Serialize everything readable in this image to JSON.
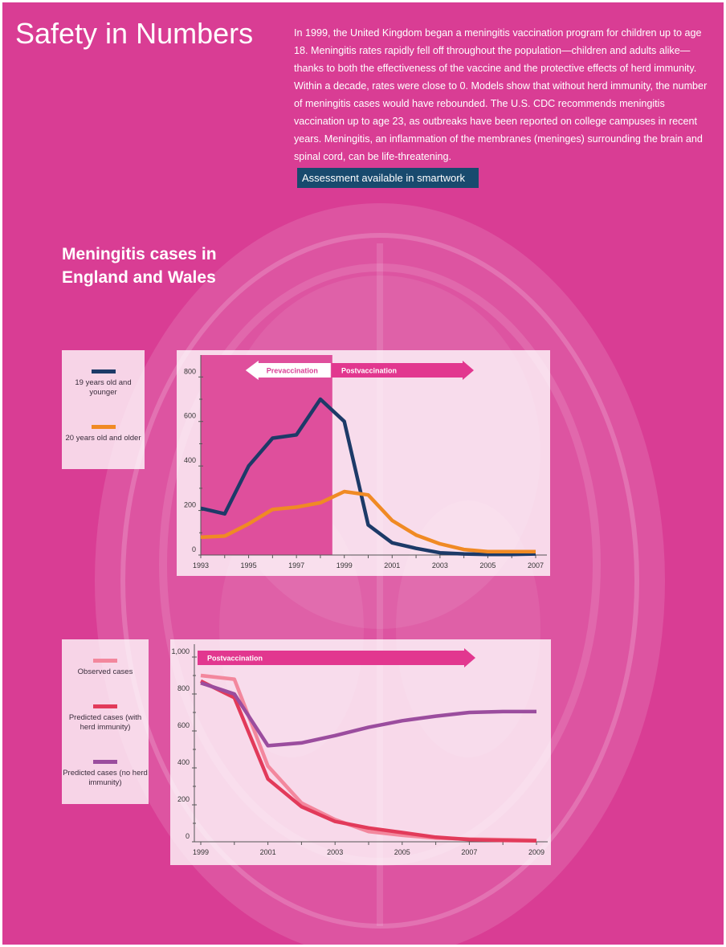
{
  "page": {
    "title": "Safety in Numbers",
    "intro": "In 1999, the United Kingdom began a meningitis vaccination program for children up to age 18. Meningitis rates rapidly fell off throughout the population—children and adults alike—thanks to both the effectiveness of the vaccine and the protective effects of herd immunity. Within a decade, rates were close to 0. Models show that without herd immunity, the number of meningitis cases would have rebounded. The U.S. CDC recommends meningitis vaccination up to age 23, as outbreaks have been reported on college campuses in recent years. Meningitis, an inflammation of the membranes (meninges) surrounding the brain and spinal cord, can be life-threatening.",
    "assessment_button": "Assessment available in smartwork",
    "chart_heading": "Meningitis cases in England and Wales"
  },
  "colors": {
    "background": "#d93d94",
    "button": "#184a6e",
    "arrow": "#e2378f",
    "young": "#1d3a68",
    "older": "#f08a24",
    "observed": "#f3879d",
    "herd": "#e23a5a",
    "no_herd": "#9b4d9e"
  },
  "chart_data": [
    {
      "type": "line",
      "x": [
        1993,
        1994,
        1995,
        1996,
        1997,
        1998,
        1999,
        2000,
        2001,
        2002,
        2003,
        2004,
        2005,
        2006,
        2007
      ],
      "xticks": [
        "1993",
        "1995",
        "1997",
        "1999",
        "2001",
        "2003",
        "2005",
        "2007"
      ],
      "yticks": [
        "0",
        "200",
        "400",
        "600",
        "800"
      ],
      "ylim": [
        0,
        830
      ],
      "xlim": [
        1993,
        2007
      ],
      "annotations": {
        "prevaccination": "Prevaccination",
        "postvaccination": "Postvaccination",
        "vaccination_start": 1998.5
      },
      "series": [
        {
          "name": "19 years old and younger",
          "color": "#1d3a68",
          "values": [
            210,
            185,
            400,
            525,
            540,
            700,
            600,
            135,
            55,
            30,
            10,
            5,
            3,
            3,
            5
          ]
        },
        {
          "name": "20 years old and older",
          "color": "#f08a24",
          "values": [
            80,
            85,
            140,
            205,
            215,
            235,
            285,
            270,
            155,
            90,
            50,
            25,
            15,
            15,
            15
          ]
        }
      ]
    },
    {
      "type": "line",
      "x": [
        1999,
        2000,
        2001,
        2002,
        2003,
        2004,
        2005,
        2006,
        2007,
        2008,
        2009
      ],
      "xticks": [
        "1999",
        "2001",
        "2003",
        "2005",
        "2007",
        "2009"
      ],
      "yticks": [
        "0",
        "200",
        "400",
        "600",
        "800",
        "1,000"
      ],
      "ylim": [
        0,
        1000
      ],
      "xlim": [
        1999,
        2009
      ],
      "annotations": {
        "postvaccination": "Postvaccination"
      },
      "series": [
        {
          "name": "Observed cases",
          "color": "#f3879d",
          "values": [
            900,
            880,
            410,
            210,
            120,
            55,
            35,
            20,
            15,
            12,
            8
          ]
        },
        {
          "name": "Predicted cases (with herd immunity)",
          "color": "#e23a5a",
          "values": [
            870,
            780,
            340,
            190,
            110,
            75,
            50,
            25,
            12,
            8,
            5
          ]
        },
        {
          "name": "Predicted cases (no herd immunity)",
          "color": "#9b4d9e",
          "values": [
            860,
            800,
            520,
            535,
            575,
            620,
            655,
            680,
            700,
            705,
            705
          ]
        }
      ]
    }
  ]
}
